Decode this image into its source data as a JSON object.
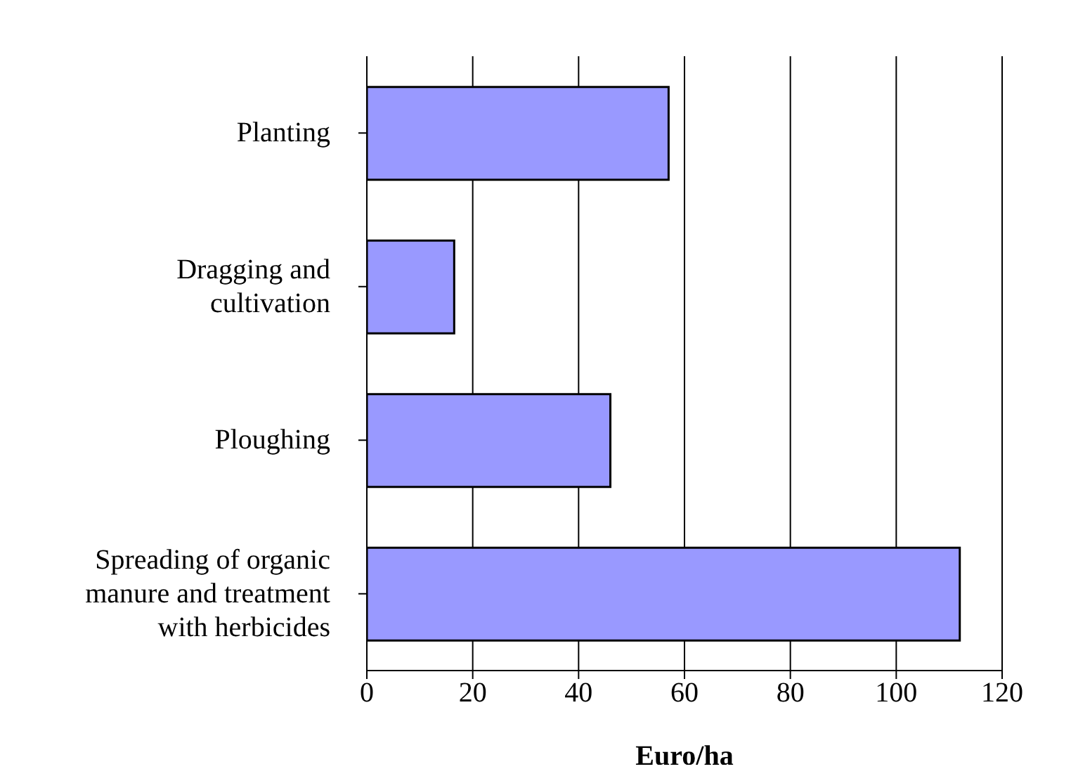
{
  "chart_data": {
    "type": "bar",
    "orientation": "horizontal",
    "xlabel": "Euro/ha",
    "categories": [
      "Planting",
      "Dragging and cultivation",
      "Ploughing",
      "Spreading of organic manure and treatment with herbicides"
    ],
    "values": [
      57,
      16.5,
      46,
      112
    ],
    "color": "#9999ff",
    "xlim": [
      0,
      120
    ],
    "xticks": [
      0,
      20,
      40,
      60,
      80,
      100,
      120
    ],
    "grid": "x"
  }
}
